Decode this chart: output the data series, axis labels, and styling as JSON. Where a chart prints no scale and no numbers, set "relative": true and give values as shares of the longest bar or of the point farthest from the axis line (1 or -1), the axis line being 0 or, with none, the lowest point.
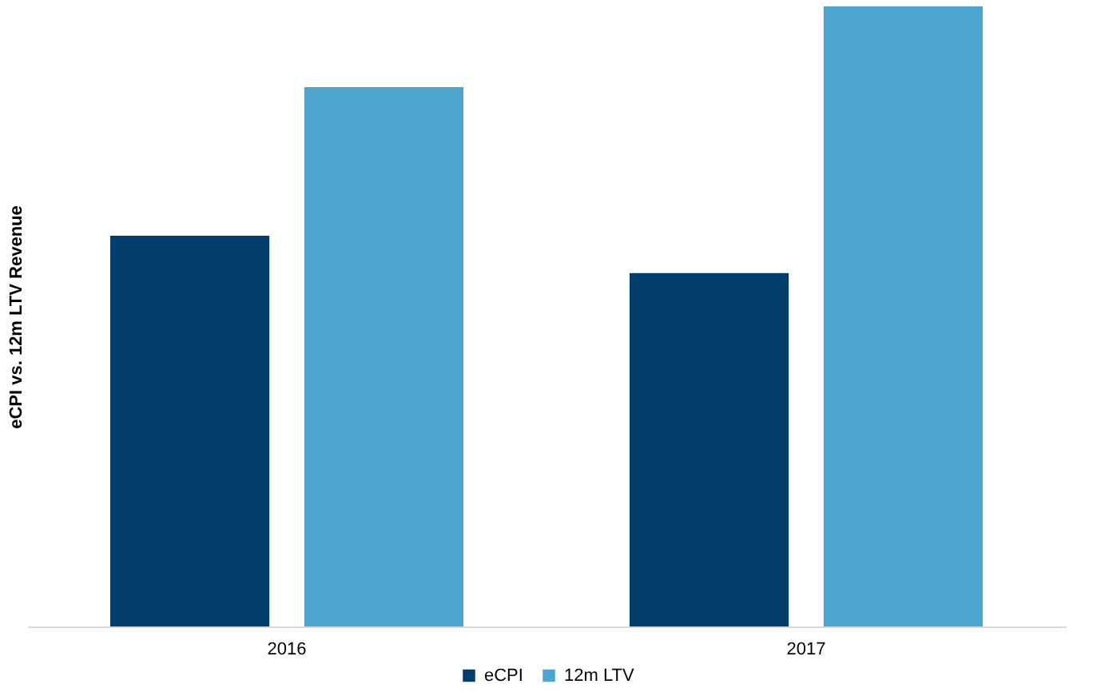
{
  "chart_data": {
    "type": "bar",
    "relative": true,
    "ylabel": "eCPI vs. 12m LTV Revenue",
    "categories": [
      "2016",
      "2017"
    ],
    "series": [
      {
        "name": "eCPI",
        "color": "#023e6b",
        "values": [
          0.63,
          0.57
        ]
      },
      {
        "name": "12m LTV",
        "color": "#4ba5cf",
        "values": [
          0.87,
          1
        ]
      }
    ],
    "legend": "bottom"
  }
}
